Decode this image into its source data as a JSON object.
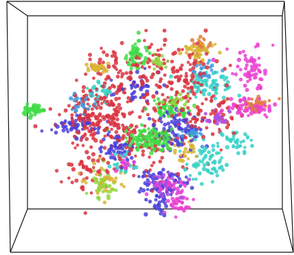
{
  "chart_data": {
    "type": "scatter",
    "view": "3d",
    "grid": false,
    "legend": "none",
    "background": "#ffffff",
    "box_color": "#111111",
    "title": "",
    "xlabel": "",
    "ylabel": "",
    "zlabel": "",
    "marker_size": "small",
    "point_opacity": 0.85,
    "series": [
      {
        "color": "#d9343f",
        "clusters": [
          {
            "cx": 0.33,
            "cy": 0.47,
            "sx": 0.06,
            "sy": 0.06,
            "n": 180
          },
          {
            "cx": 0.6,
            "cy": 0.3,
            "sx": 0.07,
            "sy": 0.08,
            "n": 150
          },
          {
            "cx": 0.48,
            "cy": 0.55,
            "sx": 0.09,
            "sy": 0.09,
            "n": 120
          },
          {
            "cx": 0.4,
            "cy": 0.28,
            "sx": 0.05,
            "sy": 0.06,
            "n": 70
          },
          {
            "cx": 0.3,
            "cy": 0.68,
            "sx": 0.04,
            "sy": 0.04,
            "n": 40
          },
          {
            "cx": 0.72,
            "cy": 0.45,
            "sx": 0.05,
            "sy": 0.05,
            "n": 60
          }
        ]
      },
      {
        "color": "#4a3fd9",
        "clusters": [
          {
            "cx": 0.6,
            "cy": 0.5,
            "sx": 0.04,
            "sy": 0.04,
            "n": 90
          },
          {
            "cx": 0.4,
            "cy": 0.58,
            "sx": 0.03,
            "sy": 0.03,
            "n": 50
          },
          {
            "cx": 0.25,
            "cy": 0.49,
            "sx": 0.04,
            "sy": 0.02,
            "n": 50
          },
          {
            "cx": 0.55,
            "cy": 0.71,
            "sx": 0.04,
            "sy": 0.03,
            "n": 50
          },
          {
            "cx": 0.47,
            "cy": 0.35,
            "sx": 0.04,
            "sy": 0.03,
            "n": 40
          },
          {
            "cx": 0.54,
            "cy": 0.79,
            "sx": 0.02,
            "sy": 0.03,
            "n": 30
          }
        ]
      },
      {
        "color": "#3fdc46",
        "clusters": [
          {
            "cx": 0.52,
            "cy": 0.55,
            "sx": 0.045,
            "sy": 0.025,
            "n": 130
          },
          {
            "cx": 0.11,
            "cy": 0.43,
            "sx": 0.02,
            "sy": 0.01,
            "n": 40
          },
          {
            "cx": 0.46,
            "cy": 0.22,
            "sx": 0.02,
            "sy": 0.03,
            "n": 45
          },
          {
            "cx": 0.58,
            "cy": 0.43,
            "sx": 0.03,
            "sy": 0.02,
            "n": 40
          }
        ]
      },
      {
        "color": "#ea3fd0",
        "clusters": [
          {
            "cx": 0.85,
            "cy": 0.27,
            "sx": 0.03,
            "sy": 0.04,
            "n": 60
          },
          {
            "cx": 0.86,
            "cy": 0.42,
            "sx": 0.04,
            "sy": 0.02,
            "n": 60
          },
          {
            "cx": 0.58,
            "cy": 0.73,
            "sx": 0.03,
            "sy": 0.02,
            "n": 45
          },
          {
            "cx": 0.61,
            "cy": 0.8,
            "sx": 0.02,
            "sy": 0.02,
            "n": 30
          },
          {
            "cx": 0.43,
            "cy": 0.64,
            "sx": 0.02,
            "sy": 0.02,
            "n": 20
          }
        ]
      },
      {
        "color": "#36d2c7",
        "clusters": [
          {
            "cx": 0.71,
            "cy": 0.33,
            "sx": 0.04,
            "sy": 0.03,
            "n": 60
          },
          {
            "cx": 0.7,
            "cy": 0.64,
            "sx": 0.04,
            "sy": 0.04,
            "n": 60
          },
          {
            "cx": 0.81,
            "cy": 0.56,
            "sx": 0.03,
            "sy": 0.02,
            "n": 35
          },
          {
            "cx": 0.34,
            "cy": 0.35,
            "sx": 0.02,
            "sy": 0.02,
            "n": 25
          },
          {
            "cx": 0.42,
            "cy": 0.65,
            "sx": 0.02,
            "sy": 0.02,
            "n": 20
          }
        ]
      },
      {
        "color": "#d9b536",
        "clusters": [
          {
            "cx": 0.67,
            "cy": 0.2,
            "sx": 0.03,
            "sy": 0.02,
            "n": 45
          },
          {
            "cx": 0.34,
            "cy": 0.27,
            "sx": 0.02,
            "sy": 0.01,
            "n": 25
          },
          {
            "cx": 0.36,
            "cy": 0.71,
            "sx": 0.03,
            "sy": 0.03,
            "n": 35
          },
          {
            "cx": 0.64,
            "cy": 0.6,
            "sx": 0.03,
            "sy": 0.03,
            "n": 25
          }
        ]
      },
      {
        "color": "#8fd93f",
        "clusters": [
          {
            "cx": 0.34,
            "cy": 0.73,
            "sx": 0.02,
            "sy": 0.03,
            "n": 40
          },
          {
            "cx": 0.6,
            "cy": 0.41,
            "sx": 0.03,
            "sy": 0.02,
            "n": 25
          },
          {
            "cx": 0.54,
            "cy": 0.25,
            "sx": 0.02,
            "sy": 0.02,
            "n": 20
          }
        ]
      },
      {
        "color": "#3f9be0",
        "clusters": [
          {
            "cx": 0.28,
            "cy": 0.41,
            "sx": 0.03,
            "sy": 0.02,
            "n": 30
          },
          {
            "cx": 0.7,
            "cy": 0.28,
            "sx": 0.02,
            "sy": 0.02,
            "n": 25
          },
          {
            "cx": 0.65,
            "cy": 0.52,
            "sx": 0.02,
            "sy": 0.02,
            "n": 25
          }
        ]
      },
      {
        "color": "#a84fe0",
        "clusters": [
          {
            "cx": 0.56,
            "cy": 0.72,
            "sx": 0.03,
            "sy": 0.02,
            "n": 35
          },
          {
            "cx": 0.74,
            "cy": 0.46,
            "sx": 0.02,
            "sy": 0.02,
            "n": 25
          }
        ]
      },
      {
        "color": "#e07a3f",
        "clusters": [
          {
            "cx": 0.88,
            "cy": 0.41,
            "sx": 0.03,
            "sy": 0.015,
            "n": 30
          },
          {
            "cx": 0.69,
            "cy": 0.18,
            "sx": 0.02,
            "sy": 0.015,
            "n": 20
          }
        ]
      }
    ]
  }
}
